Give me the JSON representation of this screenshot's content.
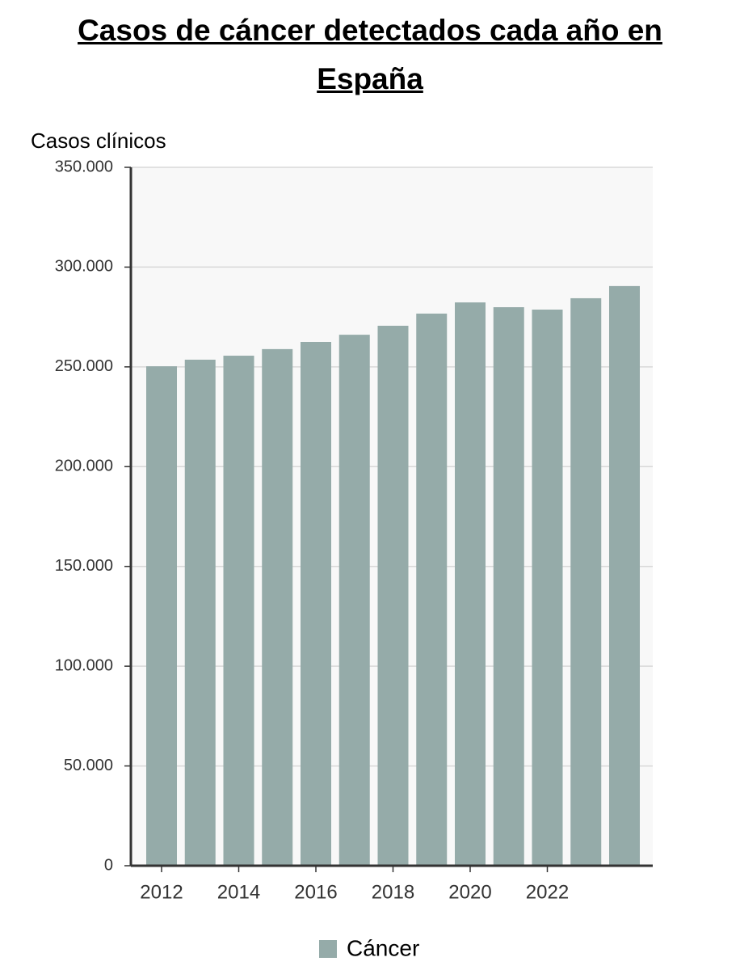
{
  "chart_data": {
    "type": "bar",
    "title": "Casos de cáncer detectados cada año en España",
    "y_label": "Casos clínicos",
    "categories": [
      "2012",
      null,
      "2014",
      null,
      "2016",
      null,
      "2018",
      null,
      "2020",
      null,
      "2022",
      null,
      null
    ],
    "series": [
      {
        "name": "Cáncer",
        "color": "#95aba9",
        "values": [
          250300,
          253600,
          255600,
          258900,
          262500,
          266100,
          270600,
          276700,
          282300,
          279900,
          278700,
          284400,
          290500
        ]
      }
    ],
    "ylim": [
      0,
      350000
    ],
    "yticks": [
      0,
      {
        "value": 50000,
        "label": "50.000"
      },
      {
        "value": 100000,
        "label": "100.000"
      },
      {
        "value": 150000,
        "label": "150.000"
      },
      {
        "value": 200000,
        "label": "200.000"
      },
      {
        "value": 250000,
        "label": "250.000"
      },
      {
        "value": 300000,
        "label": "300.000"
      },
      {
        "value": 350000,
        "label": "350.000"
      }
    ],
    "grid": true
  }
}
